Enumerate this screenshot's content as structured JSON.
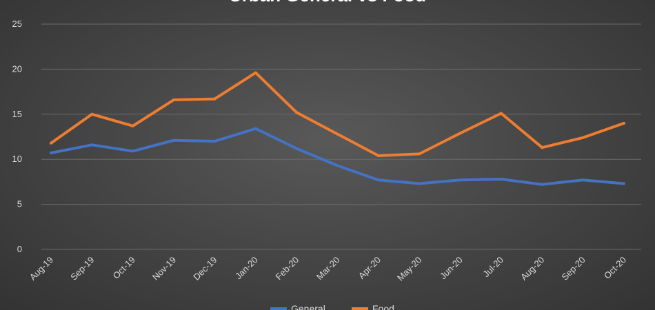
{
  "chart_data": {
    "type": "line",
    "title": "Urban General vs Food",
    "categories": [
      "Aug-19",
      "Sep-19",
      "Oct-19",
      "Nov-19",
      "Dec-19",
      "Jan-20",
      "Feb-20",
      "Mar-20",
      "Apr-20",
      "May-20",
      "Jun-20",
      "Jul-20",
      "Aug-20",
      "Sep-20",
      "Oct-20"
    ],
    "ylim": [
      0,
      25
    ],
    "yticks": [
      "0",
      "5",
      "10",
      "15",
      "20",
      "25"
    ],
    "grid": true,
    "legend_position": "bottom",
    "series": [
      {
        "name": "General",
        "color": "#4472C4",
        "values": [
          10.7,
          11.6,
          10.9,
          12.1,
          12.0,
          13.4,
          11.2,
          9.3,
          7.7,
          7.3,
          7.7,
          7.8,
          7.2,
          7.7,
          7.3
        ]
      },
      {
        "name": "Food",
        "color": "#ED7D31",
        "values": [
          11.8,
          15.0,
          13.7,
          16.6,
          16.7,
          19.6,
          15.2,
          12.8,
          10.4,
          10.6,
          12.9,
          15.1,
          11.3,
          12.4,
          14.0
        ]
      }
    ]
  }
}
